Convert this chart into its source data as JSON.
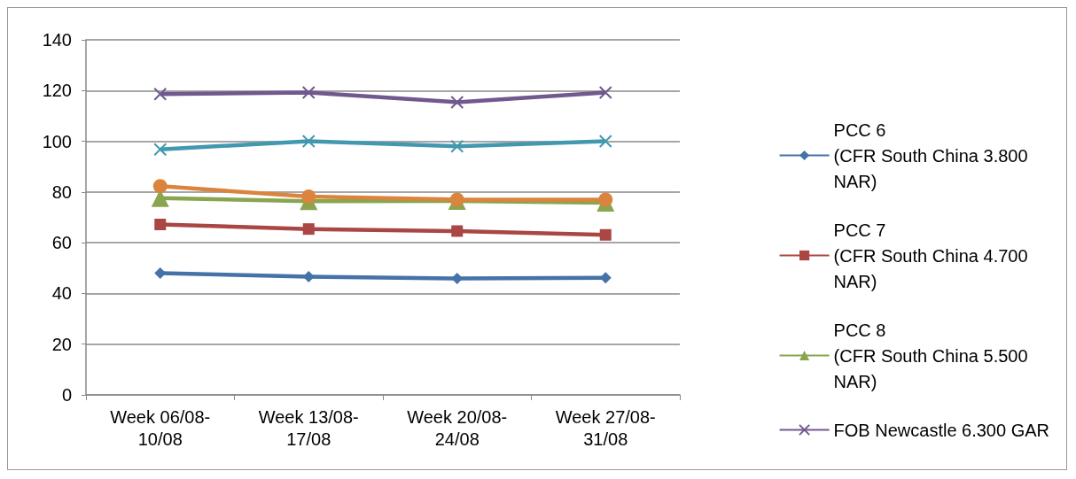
{
  "chart_data": {
    "type": "line",
    "categories": [
      "Week 06/08-\n10/08",
      "Week 13/08-\n17/08",
      "Week 20/08-\n24/08",
      "Week 27/08-\n31/08"
    ],
    "ylim": [
      0,
      140
    ],
    "yticks": [
      0,
      20,
      40,
      60,
      80,
      100,
      120,
      140
    ],
    "grid": "y",
    "legend": "right",
    "series": [
      {
        "name": "PCC 6\n(CFR South China 3.800\nNAR)",
        "color": "#4572a7",
        "marker": "diamond",
        "values": [
          48,
          46.6,
          45.9,
          46.2
        ]
      },
      {
        "name": "PCC 7\n(CFR South China 4.700\nNAR)",
        "color": "#aa4643",
        "marker": "square",
        "values": [
          67.2,
          65.4,
          64.6,
          63.1
        ]
      },
      {
        "name": "PCC 8\n(CFR South China 5.500\nNAR)",
        "color": "#89a54e",
        "marker": "triangle",
        "values": [
          77.6,
          76.4,
          76.5,
          75.8
        ]
      },
      {
        "name": "FOB Newcastle 6.300 GAR",
        "color": "#71588f",
        "marker": "cross",
        "values": [
          118.6,
          119.2,
          115.4,
          119.2
        ]
      },
      {
        "color": "#4198af",
        "marker": "cross",
        "values": [
          96.8,
          100,
          98,
          100
        ]
      },
      {
        "color": "#db843d",
        "marker": "circle",
        "values": [
          82.3,
          78.2,
          77,
          77
        ]
      }
    ]
  }
}
